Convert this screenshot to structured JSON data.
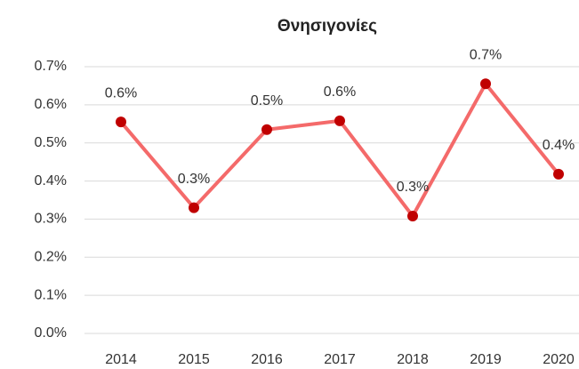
{
  "chart_data": {
    "type": "line",
    "title": "Θνησιγονίες",
    "categories": [
      "2014",
      "2015",
      "2016",
      "2017",
      "2018",
      "2019",
      "2020"
    ],
    "series": [
      {
        "name": "Θνησιγονίες",
        "color": "#f46a6a",
        "marker_color": "#c00000",
        "values": [
          0.555,
          0.33,
          0.535,
          0.558,
          0.308,
          0.655,
          0.418
        ],
        "value_labels": [
          "0.6%",
          "0.3%",
          "0.5%",
          "0.6%",
          "0.3%",
          "0.7%",
          "0.4%"
        ]
      }
    ],
    "ylim": [
      0,
      0.7
    ],
    "yticks": [
      {
        "value": 0,
        "label": "0.0%"
      },
      {
        "value": 0.1,
        "label": "0.1%"
      },
      {
        "value": 0.2,
        "label": "0.2%"
      },
      {
        "value": 0.3,
        "label": "0.3%"
      },
      {
        "value": 0.4,
        "label": "0.4%"
      },
      {
        "value": 0.5,
        "label": "0.5%"
      },
      {
        "value": 0.6,
        "label": "0.6%"
      },
      {
        "value": 0.7,
        "label": "0.7%"
      }
    ],
    "grid": true
  }
}
